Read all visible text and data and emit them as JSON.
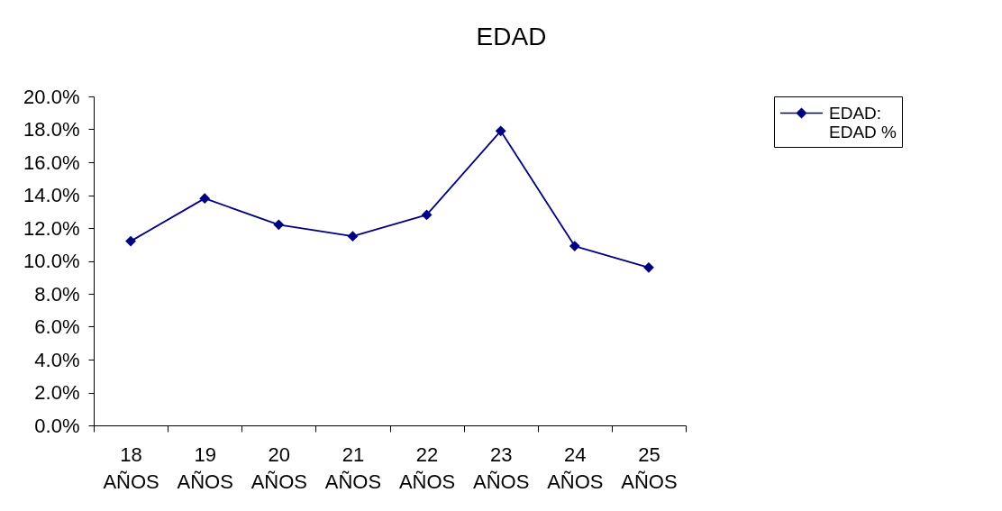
{
  "chart_data": {
    "type": "line",
    "title": "EDAD",
    "categories": [
      "18 AÑOS",
      "19 AÑOS",
      "20 AÑOS",
      "21 AÑOS",
      "22 AÑOS",
      "23 AÑOS",
      "24 AÑOS",
      "25 AÑOS"
    ],
    "series": [
      {
        "name": "EDAD: EDAD %",
        "color": "#000080",
        "values": [
          11.2,
          13.8,
          12.2,
          11.5,
          12.8,
          17.9,
          10.9,
          9.6
        ]
      }
    ],
    "ylim": [
      0,
      20
    ],
    "yticks": [
      {
        "value": 0,
        "label": "0.0%"
      },
      {
        "value": 2,
        "label": "2.0%"
      },
      {
        "value": 4,
        "label": "4.0%"
      },
      {
        "value": 6,
        "label": "6.0%"
      },
      {
        "value": 8,
        "label": "8.0%"
      },
      {
        "value": 10,
        "label": "10.0%"
      },
      {
        "value": 12,
        "label": "12.0%"
      },
      {
        "value": 14,
        "label": "14.0%"
      },
      {
        "value": 16,
        "label": "16.0%"
      },
      {
        "value": 18,
        "label": "18.0%"
      },
      {
        "value": 20,
        "label": "20.0%"
      }
    ],
    "grid": false,
    "legend": "top right",
    "marker": "diamond",
    "line_style": "solid"
  }
}
